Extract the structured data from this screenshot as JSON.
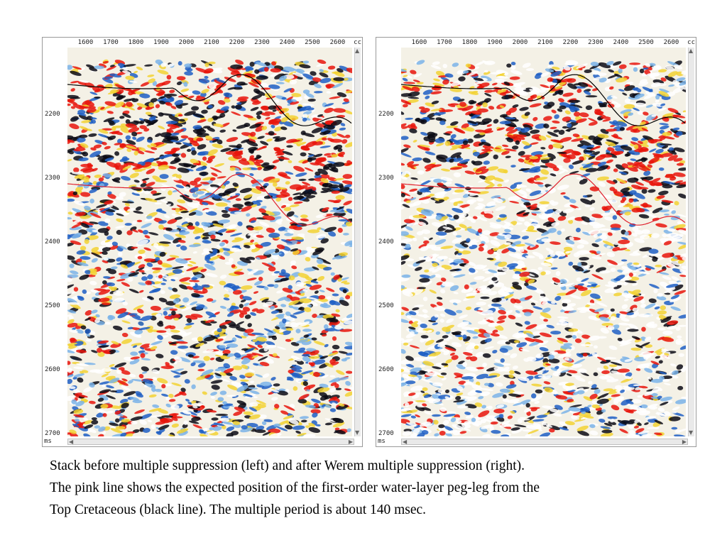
{
  "panels": [
    {
      "id": "left",
      "label": "before multiple suppression",
      "x_ticks": [
        "1600",
        "1700",
        "1800",
        "1900",
        "2000",
        "2100",
        "2200",
        "2300",
        "2400",
        "2500",
        "2600"
      ],
      "x_unit": "cc",
      "y_ticks": [
        "2200",
        "2300",
        "2400",
        "2500",
        "2600",
        "2700"
      ],
      "y_unit": "ms"
    },
    {
      "id": "right",
      "label": "after Werem multiple suppression",
      "x_ticks": [
        "1600",
        "1700",
        "1800",
        "1900",
        "2000",
        "2100",
        "2200",
        "2300",
        "2400",
        "2500",
        "2600"
      ],
      "x_unit": "cc",
      "y_ticks": [
        "2200",
        "2300",
        "2400",
        "2500",
        "2600",
        "2700"
      ],
      "y_unit": "ms"
    }
  ],
  "colors": {
    "peak_red": "#e8150c",
    "trough_black": "#0a0a14",
    "blue": "#1e5fc4",
    "light_blue": "#7ab3e8",
    "yellow": "#f2d233",
    "top_cretaceous_line": "#000000",
    "pegleg_line": "#e0202c"
  },
  "caption": {
    "line1": "Stack before multiple suppression (left)    and   after Werem multiple suppression (right).",
    "line2": "The pink line shows the expected position of the first-order water-layer peg-leg from the",
    "line3": "Top Cretaceous (black line). The multiple period is about 140 msec."
  }
}
